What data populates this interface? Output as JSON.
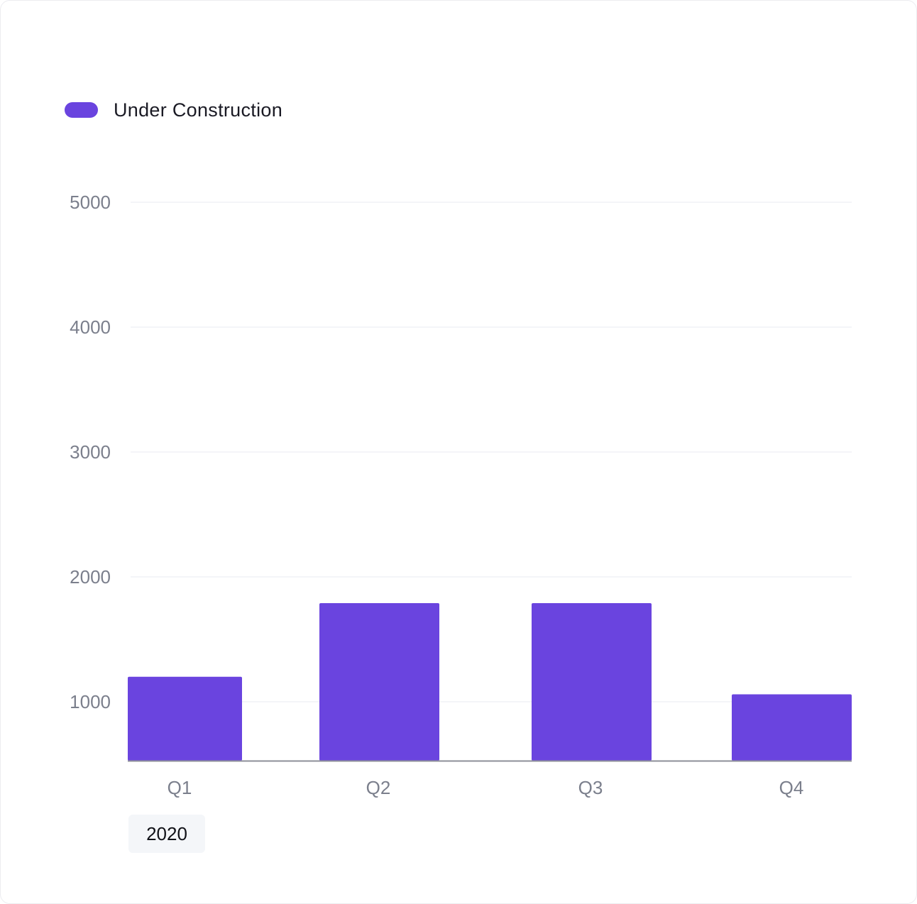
{
  "legend": {
    "label": "Under Construction",
    "color": "#6a44df"
  },
  "period_label": "2020",
  "colors": {
    "bar": "#6a44df",
    "grid": "#f1f2f5",
    "axis": "#8d8f99",
    "tick_text": "#7b7f8c"
  },
  "chart_data": {
    "type": "bar",
    "categories": [
      "Q1",
      "Q2",
      "Q3",
      "Q4"
    ],
    "series": [
      {
        "name": "Under Construction",
        "values": [
          1200,
          1790,
          1790,
          1060
        ]
      }
    ],
    "y_ticks": [
      "1000",
      "2000",
      "3000",
      "4000",
      "5000"
    ],
    "ylim": [
      520,
      5000
    ],
    "grid": true,
    "legend_position": "top-left"
  }
}
